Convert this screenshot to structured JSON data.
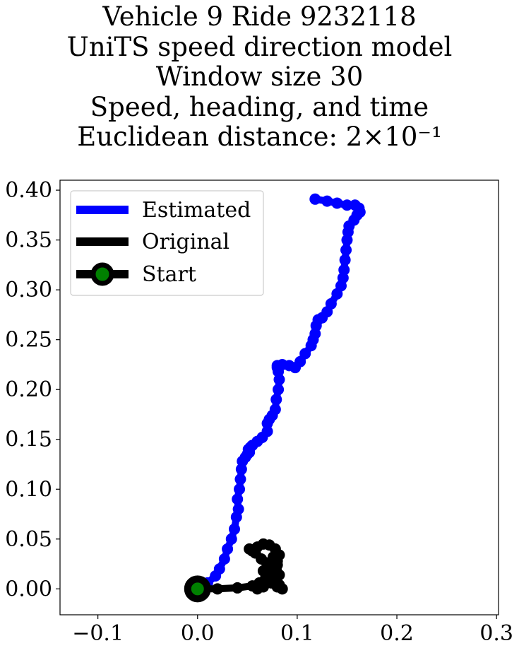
{
  "title_lines": [
    "Vehicle 9 Ride 9232118",
    "UniTS speed direction model",
    "Window size 30",
    "Speed, heading, and time",
    "Euclidean distance: 2×10⁻¹"
  ],
  "colors": {
    "estimated": "#0000ff",
    "original": "#000000",
    "start_marker_face": "#008000",
    "start_marker_edge": "#000000"
  },
  "chart_data": {
    "type": "line",
    "title": "Vehicle 9 Ride 9232118 / UniTS speed direction model / Window size 30 / Speed, heading, and time / Euclidean distance: 2×10⁻¹",
    "xlabel": "",
    "ylabel": "",
    "xlim": [
      -0.138,
      0.302
    ],
    "ylim": [
      -0.026,
      0.41
    ],
    "xticks": [
      -0.1,
      0.0,
      0.1,
      0.2,
      0.3
    ],
    "xtick_labels": [
      "−0.1",
      "0.0",
      "0.1",
      "0.2",
      "0.3"
    ],
    "yticks": [
      0.0,
      0.05,
      0.1,
      0.15,
      0.2,
      0.25,
      0.3,
      0.35,
      0.4
    ],
    "ytick_labels": [
      "0.00",
      "0.05",
      "0.10",
      "0.15",
      "0.20",
      "0.25",
      "0.30",
      "0.35",
      "0.40"
    ],
    "grid": false,
    "legend_position": "upper-left",
    "legend": [
      "Estimated",
      "Original",
      "Start"
    ],
    "series": [
      {
        "name": "Estimated",
        "x": [
          0.0,
          0.01,
          0.018,
          0.022,
          0.027,
          0.03,
          0.034,
          0.037,
          0.039,
          0.041,
          0.04,
          0.042,
          0.043,
          0.044,
          0.045,
          0.048,
          0.05,
          0.052,
          0.051,
          0.053,
          0.055,
          0.06,
          0.065,
          0.07,
          0.07,
          0.072,
          0.075,
          0.078,
          0.079,
          0.081,
          0.082,
          0.081,
          0.08,
          0.08,
          0.085,
          0.092,
          0.098,
          0.103,
          0.108,
          0.114,
          0.116,
          0.118,
          0.119,
          0.121,
          0.125,
          0.13,
          0.134,
          0.14,
          0.144,
          0.146,
          0.147,
          0.148,
          0.149,
          0.15,
          0.151,
          0.152,
          0.157,
          0.16,
          0.163,
          0.162,
          0.158,
          0.15,
          0.14,
          0.13,
          0.118
        ],
        "y": [
          0.001,
          0.006,
          0.013,
          0.02,
          0.03,
          0.04,
          0.05,
          0.06,
          0.072,
          0.08,
          0.09,
          0.1,
          0.11,
          0.12,
          0.128,
          0.132,
          0.135,
          0.137,
          0.14,
          0.142,
          0.144,
          0.148,
          0.152,
          0.158,
          0.166,
          0.17,
          0.174,
          0.18,
          0.19,
          0.2,
          0.21,
          0.218,
          0.222,
          0.224,
          0.225,
          0.224,
          0.222,
          0.228,
          0.236,
          0.244,
          0.25,
          0.256,
          0.264,
          0.27,
          0.272,
          0.278,
          0.286,
          0.296,
          0.304,
          0.312,
          0.32,
          0.33,
          0.34,
          0.35,
          0.358,
          0.364,
          0.37,
          0.375,
          0.378,
          0.382,
          0.385,
          0.385,
          0.387,
          0.389,
          0.391
        ]
      },
      {
        "name": "Original",
        "x": [
          0.0,
          0.02,
          0.04,
          0.055,
          0.062,
          0.068,
          0.072,
          0.076,
          0.08,
          0.082,
          0.078,
          0.072,
          0.066,
          0.06,
          0.055,
          0.052,
          0.058,
          0.064,
          0.07,
          0.074,
          0.078,
          0.082,
          0.085,
          0.08,
          0.072,
          0.066,
          0.07,
          0.076,
          0.08,
          0.082,
          0.074,
          0.066,
          0.06
        ],
        "y": [
          0.0,
          0.0,
          0.001,
          0.003,
          0.006,
          0.01,
          0.016,
          0.022,
          0.028,
          0.034,
          0.04,
          0.044,
          0.045,
          0.042,
          0.038,
          0.04,
          0.036,
          0.03,
          0.022,
          0.014,
          0.008,
          0.004,
          0.0,
          0.002,
          0.01,
          0.018,
          0.026,
          0.032,
          0.024,
          0.014,
          0.006,
          0.002,
          0.0
        ]
      },
      {
        "name": "Start",
        "x": [
          0.0
        ],
        "y": [
          0.0
        ]
      }
    ]
  }
}
